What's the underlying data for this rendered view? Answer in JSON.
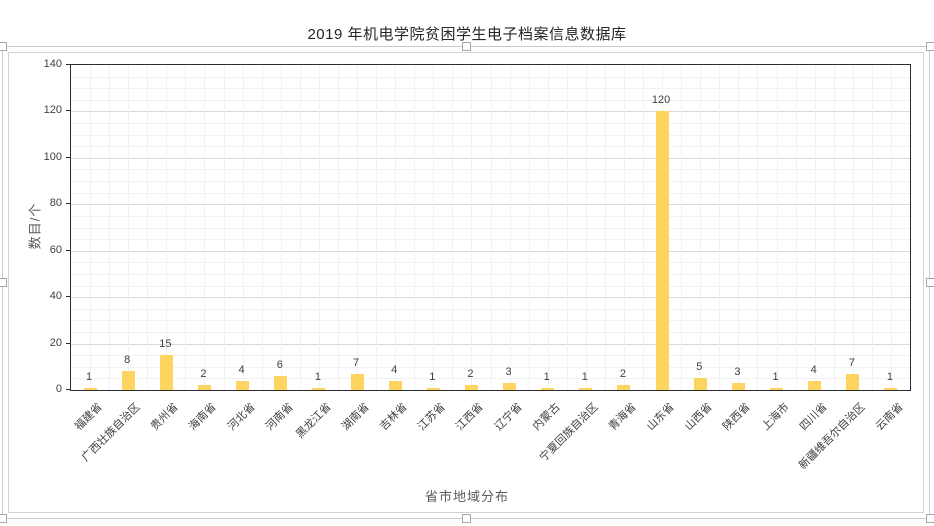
{
  "chart_data": {
    "type": "bar",
    "title": "2019 年机电学院贫困学生电子档案信息数据库",
    "xlabel": "省市地域分布",
    "ylabel": "数目/个",
    "ylim": [
      0,
      140
    ],
    "ytick_interval": 20,
    "ytick_minor_interval": 5,
    "yticks": [
      0,
      20,
      40,
      60,
      80,
      100,
      120,
      140
    ],
    "grid": "major+minor horizontal, minor vertical",
    "legend": "none",
    "bar_color": "#FCD45F",
    "data_labels": true,
    "categories": [
      "福建省",
      "广西壮族自治区",
      "贵州省",
      "海南省",
      "河北省",
      "河南省",
      "黑龙江省",
      "湖南省",
      "吉林省",
      "江苏省",
      "江西省",
      "辽宁省",
      "内蒙古",
      "宁夏回族自治区",
      "青海省",
      "山东省",
      "山西省",
      "陕西省",
      "上海市",
      "四川省",
      "新疆维吾尔自治区",
      "云南省"
    ],
    "values": [
      1,
      8,
      15,
      2,
      4,
      6,
      1,
      7,
      4,
      1,
      2,
      3,
      1,
      1,
      2,
      120,
      5,
      3,
      1,
      4,
      7,
      1
    ]
  },
  "selection": {
    "state": "chart-object-selected",
    "handle_count": 8
  }
}
